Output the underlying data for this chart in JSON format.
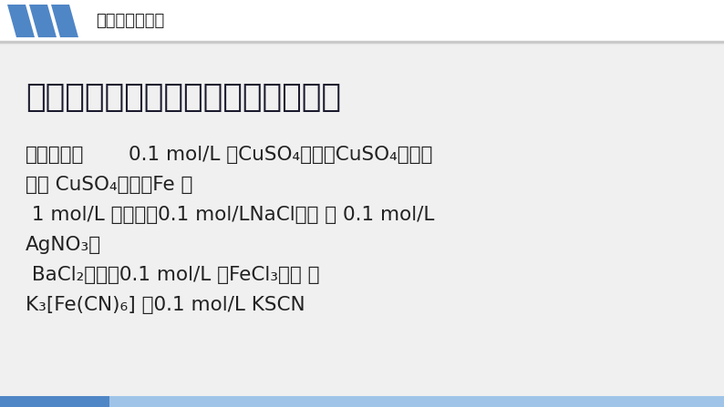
{
  "bg_color": "#f0f0f0",
  "header_bg": "#ffffff",
  "header_line_color": "#a0a0a0",
  "header_text": "实验仪器与药品",
  "header_text_color": "#222222",
  "header_font_size": 13,
  "parallelogram_colors": [
    "#4f86c6",
    "#4f86c6",
    "#4f86c6"
  ],
  "title_text": "实验仪器：试管、玻璃棒、胶头滴管",
  "title_color": "#1a1a2e",
  "title_font_size": 26,
  "body_color": "#222222",
  "body_font_size": 15.5,
  "body_bold_part": "实验药品：",
  "body_line1_rest": "0.1 mol/L 的CuSO₄溶液、CuSO₄晶体、",
  "body_line2": "白色 CuSO₄粉末、Fe 片",
  "body_line3": " 1 mol/L 的氨水、0.1 mol/LNaCl溶液 、 0.1 mol/L",
  "body_line4": "AgNO₃、",
  "body_line5": " BaCl₂溶液、0.1 mol/L 的FeCl₃溶液 、",
  "body_line6": "K₃[Fe(CN)₆] 、0.1 mol/L KSCN",
  "bottom_bar_color": "#4f86c6",
  "bottom_bar2_color": "#a0c4e8"
}
